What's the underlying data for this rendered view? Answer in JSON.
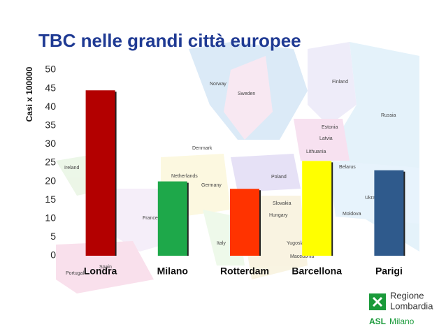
{
  "chart_data": {
    "type": "bar",
    "title": "TBC nelle grandi città europee",
    "ylabel": "Casi x 100000",
    "categories": [
      "Londra",
      "Milano",
      "Rotterdam",
      "Barcellona",
      "Parigi"
    ],
    "values": [
      44.5,
      20,
      18,
      25.5,
      23
    ],
    "colors": [
      "#b30000",
      "#1ea84a",
      "#ff3300",
      "#ffff00",
      "#2f5a8c"
    ],
    "ylim": [
      0,
      50
    ],
    "yticks": [
      0,
      5,
      10,
      15,
      20,
      25,
      30,
      35,
      40,
      45,
      50
    ],
    "grid": false
  },
  "map_labels": [
    "Norway",
    "Sweden",
    "Finland",
    "Russia",
    "Estonia",
    "Latvia",
    "Lithuania",
    "Belarus",
    "Denmark",
    "Ireland",
    "Netherlands",
    "Germany",
    "Poland",
    "Ukraine",
    "France",
    "Slovakia",
    "Hungary",
    "Moldova",
    "Italy",
    "Spain",
    "Portugal",
    "Macedonia",
    "Yugoslavia"
  ],
  "logo": {
    "line1": "Regione",
    "line2": "Lombardia",
    "asl": "ASL",
    "city": "Milano"
  }
}
